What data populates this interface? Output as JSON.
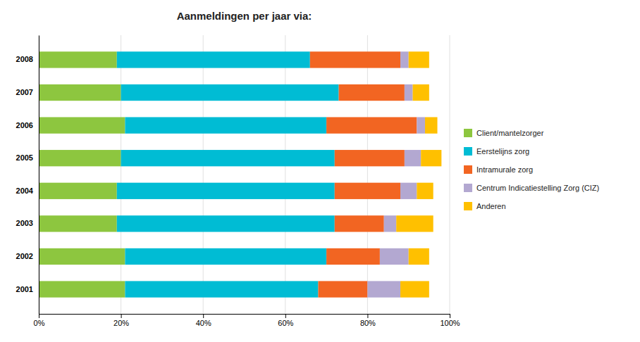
{
  "chart_data": {
    "type": "bar",
    "title": "Aanmeldingen per jaar via:",
    "orientation": "horizontal",
    "stacked": true,
    "grid": true,
    "legend": "right",
    "categories": [
      "2008",
      "2007",
      "2006",
      "2005",
      "2004",
      "2003",
      "2002",
      "2001"
    ],
    "series": [
      {
        "name": "Client/mantelzorger",
        "color": "#8dc63f",
        "values": [
          19,
          20,
          21,
          20,
          19,
          19,
          21,
          21
        ]
      },
      {
        "name": "Eerstelijns zorg",
        "color": "#00bcd4",
        "values": [
          47,
          53,
          49,
          52,
          53,
          53,
          49,
          47
        ]
      },
      {
        "name": "Intramurale zorg",
        "color": "#f26522",
        "values": [
          22,
          16,
          22,
          17,
          16,
          12,
          13,
          12
        ]
      },
      {
        "name": "Centrum Indicatiestelling Zorg (CIZ)",
        "color": "#b3a8d1",
        "values": [
          2,
          2,
          2,
          4,
          4,
          3,
          7,
          8
        ]
      },
      {
        "name": "Anderen",
        "color": "#ffc000",
        "values": [
          5,
          4,
          3,
          5,
          4,
          9,
          5,
          7
        ]
      }
    ],
    "xlim": [
      0,
      100
    ],
    "xticks": [
      {
        "value": 0,
        "label": "0%"
      },
      {
        "value": 20,
        "label": "20%"
      },
      {
        "value": 40,
        "label": "40%"
      },
      {
        "value": 60,
        "label": "60%"
      },
      {
        "value": 80,
        "label": "80%"
      },
      {
        "value": 100,
        "label": "100%"
      }
    ]
  }
}
